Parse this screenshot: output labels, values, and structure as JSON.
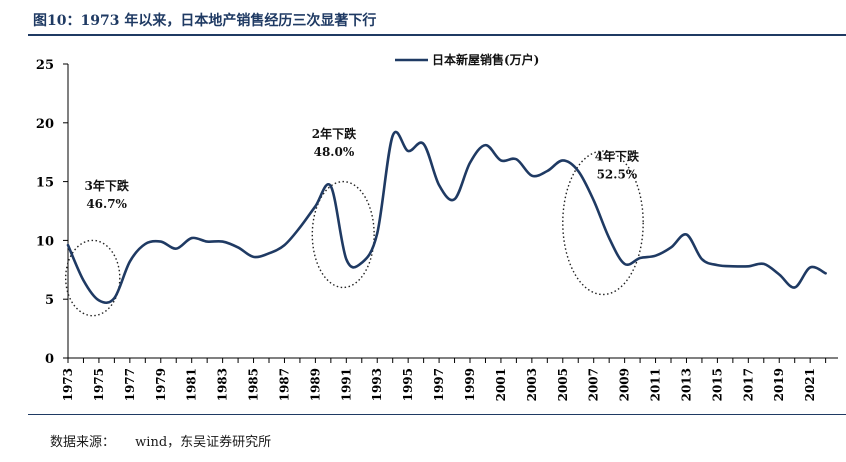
{
  "figure": {
    "title": "图10：1973 年以来，日本地产销售经历三次显著下行",
    "source_label": "数据来源：",
    "source_value": "wind，东吴证券研究所"
  },
  "chart_data": {
    "type": "line",
    "title": "",
    "xlabel": "",
    "ylabel": "",
    "xlim": [
      1973,
      2022.8
    ],
    "ylim": [
      0,
      25
    ],
    "yticks": [
      0,
      5,
      10,
      15,
      20,
      25
    ],
    "ytick_labels": [
      "0",
      "5",
      "10",
      "15",
      "20",
      "25"
    ],
    "xticks": [
      1973,
      1975,
      1977,
      1979,
      1981,
      1983,
      1985,
      1987,
      1989,
      1991,
      1993,
      1995,
      1997,
      1999,
      2001,
      2003,
      2005,
      2007,
      2009,
      2011,
      2013,
      2015,
      2017,
      2019,
      2021
    ],
    "xtick_labels": [
      "1973",
      "1975",
      "1977",
      "1979",
      "1981",
      "1983",
      "1985",
      "1987",
      "1989",
      "1991",
      "1993",
      "1995",
      "1997",
      "1999",
      "2001",
      "2003",
      "2005",
      "2007",
      "2009",
      "2011",
      "2013",
      "2015",
      "2017",
      "2019",
      "2021"
    ],
    "grid": false,
    "legend_position": "top-center",
    "series": [
      {
        "name": "日本新屋销售(万户)",
        "color": "#1f3a63",
        "x": [
          1973,
          1974,
          1975,
          1976,
          1977,
          1978,
          1979,
          1980,
          1981,
          1982,
          1983,
          1984,
          1985,
          1986,
          1987,
          1988,
          1989,
          1990,
          1991,
          1992,
          1993,
          1994,
          1995,
          1996,
          1997,
          1998,
          1999,
          2000,
          2001,
          2002,
          2003,
          2004,
          2005,
          2006,
          2007,
          2008,
          2009,
          2010,
          2011,
          2012,
          2013,
          2014,
          2015,
          2016,
          2017,
          2018,
          2019,
          2020,
          2021,
          2022
        ],
        "values": [
          9.6,
          6.6,
          4.9,
          5.1,
          8.2,
          9.7,
          9.9,
          9.3,
          10.2,
          9.9,
          9.9,
          9.4,
          8.6,
          8.9,
          9.6,
          11.1,
          12.9,
          14.6,
          8.4,
          8.1,
          10.6,
          18.9,
          17.6,
          18.2,
          14.7,
          13.5,
          16.6,
          18.1,
          16.8,
          16.9,
          15.5,
          15.9,
          16.8,
          15.9,
          13.4,
          10.2,
          8.0,
          8.5,
          8.7,
          9.4,
          10.5,
          8.4,
          7.9,
          7.8,
          7.8,
          8.0,
          7.1,
          6.0,
          7.7,
          7.2
        ]
      }
    ],
    "annotations": [
      {
        "label": "3年下跌",
        "value": "46.7%"
      },
      {
        "label": "2年下跌",
        "value": "48.0%"
      },
      {
        "label": "4年下跌",
        "value": "52.5%"
      }
    ]
  }
}
